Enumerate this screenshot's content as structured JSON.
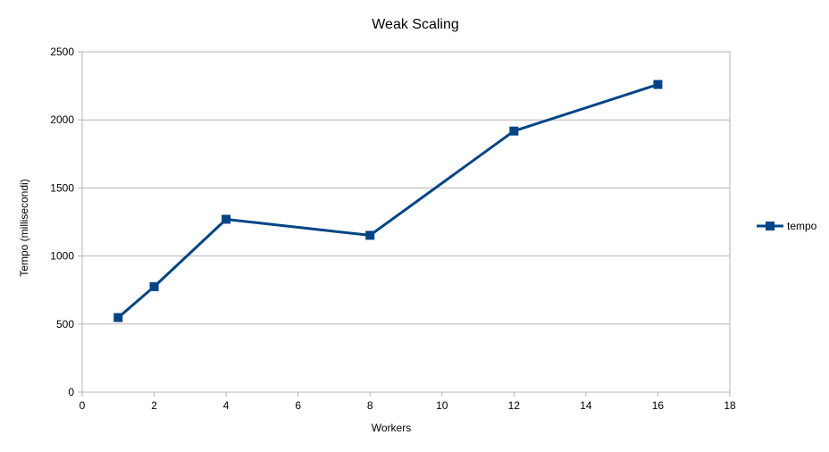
{
  "chart_data": {
    "type": "line",
    "title": "Weak Scaling",
    "xlabel": "Workers",
    "ylabel": "Tempo (millisecondi)",
    "xlim": [
      0,
      18
    ],
    "ylim": [
      0,
      2500
    ],
    "xticks": [
      0,
      2,
      4,
      6,
      8,
      10,
      12,
      14,
      16,
      18
    ],
    "yticks": [
      0,
      500,
      1000,
      1500,
      2000,
      2500
    ],
    "grid": "horizontal",
    "legend_position": "right",
    "series": [
      {
        "name": "tempo",
        "color": "#004586",
        "marker": "square",
        "points": [
          {
            "x": 1,
            "y": 548
          },
          {
            "x": 2,
            "y": 775
          },
          {
            "x": 4,
            "y": 1270
          },
          {
            "x": 8,
            "y": 1152
          },
          {
            "x": 12,
            "y": 1918
          },
          {
            "x": 16,
            "y": 2260
          }
        ]
      }
    ]
  }
}
